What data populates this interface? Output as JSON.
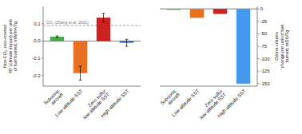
{
  "chart_data": [
    {
      "type": "bar",
      "categories": [
        "Subsonic\naircraft",
        "Low-altitude SST",
        "Zero sulfur\nlow-altitude SST",
        "High-altitude SST"
      ],
      "values": [
        0.025,
        -0.185,
        0.135,
        -0.01
      ],
      "errors": [
        0.005,
        0.04,
        0.025,
        0.02
      ],
      "colors": [
        "#4aaa4a",
        "#e87020",
        "#cc2222",
        "#3366cc"
      ],
      "ylim": [
        -0.26,
        0.2
      ],
      "yticks": [
        -0.2,
        -0.1,
        {
          "value": 0,
          "label": "0.0"
        },
        0.1
      ],
      "ylabel": "Non-CO₂, non-contrail\nRF (climate impact) per unit\nof fuel burned, mW/m²/Tg",
      "annotations": [
        {
          "text": "CO₂ (Zhang et al. 2021)",
          "y": 0.09
        }
      ]
    },
    {
      "type": "bar",
      "categories": [
        "Subsonic\naircraft",
        "Low-altitude SST",
        "Zero sulfur\nlow-altitude SST",
        "High-altitude SST"
      ],
      "values": [
        -2,
        -18,
        -10,
        -150
      ],
      "colors": [
        "#4aaa4a",
        "#e87020",
        "#cc2222",
        "#4499ee"
      ],
      "ylim": [
        -155,
        5
      ],
      "yticks": [
        0,
        -25,
        -50,
        -75,
        -100,
        -125,
        -150
      ],
      "ylabel": "Ozone column\nchange per unit of fuel\nburned, mDU/Tg"
    }
  ]
}
